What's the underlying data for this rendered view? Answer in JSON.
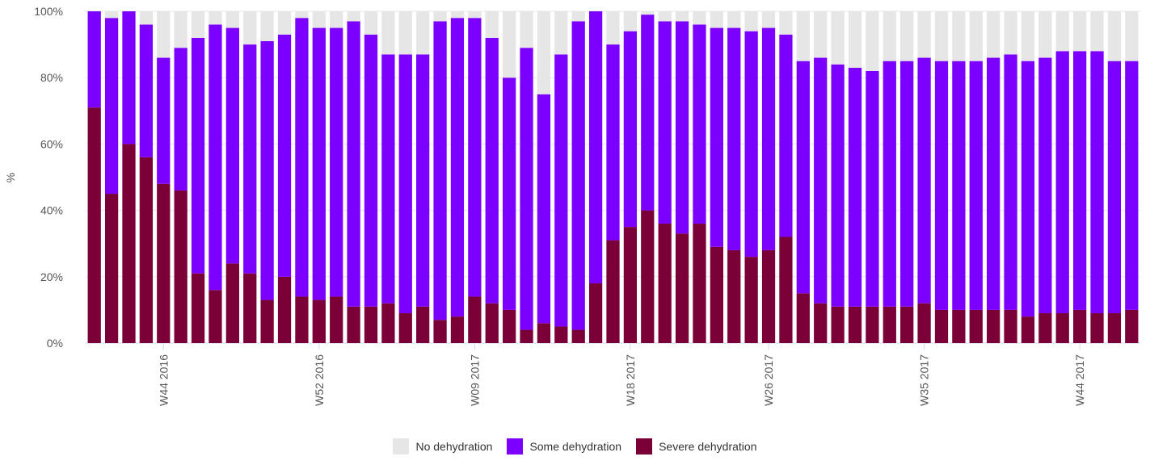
{
  "chart_data": {
    "type": "bar",
    "stacked": true,
    "ylabel": "%",
    "ylim": [
      0,
      100
    ],
    "y_ticks": [
      "0%",
      "20%",
      "40%",
      "60%",
      "80%",
      "100%"
    ],
    "grid": true,
    "legend_position": "bottom",
    "x_tick_labels": [
      "W44 2016",
      "W52 2016",
      "W09 2017",
      "W18 2017",
      "W26 2017",
      "W35 2017",
      "W44 2017"
    ],
    "x_tick_indices": [
      4,
      13,
      22,
      31,
      39,
      48,
      57
    ],
    "series": [
      {
        "name": "Severe dehydration",
        "color": "#7a0037",
        "values": [
          71,
          45,
          60,
          56,
          48,
          46,
          21,
          16,
          24,
          21,
          13,
          20,
          14,
          13,
          14,
          11,
          11,
          12,
          9,
          11,
          7,
          8,
          14,
          12,
          10,
          4,
          6,
          5,
          4,
          18,
          31,
          35,
          40,
          36,
          33,
          36,
          29,
          28,
          26,
          28,
          32,
          15,
          12,
          11,
          11,
          11,
          11,
          11,
          12,
          10,
          10,
          10,
          10,
          10,
          8,
          9,
          9,
          10,
          9,
          9,
          10
        ]
      },
      {
        "name": "Some dehydration",
        "color": "#7b00ff",
        "values": [
          29,
          53,
          40,
          40,
          38,
          43,
          71,
          80,
          71,
          69,
          78,
          73,
          84,
          82,
          81,
          86,
          82,
          75,
          78,
          76,
          90,
          90,
          84,
          80,
          70,
          85,
          69,
          82,
          93,
          82,
          59,
          59,
          59,
          61,
          64,
          60,
          66,
          67,
          68,
          67,
          61,
          70,
          74,
          73,
          72,
          71,
          74,
          74,
          74,
          75,
          75,
          75,
          76,
          77,
          77,
          77,
          79,
          78,
          79,
          76,
          75
        ]
      },
      {
        "name": "No dehydration",
        "color": "#e6e6e6",
        "values": [
          0,
          2,
          0,
          4,
          14,
          11,
          8,
          4,
          5,
          10,
          9,
          7,
          2,
          5,
          5,
          3,
          7,
          13,
          13,
          13,
          3,
          2,
          2,
          8,
          20,
          11,
          25,
          13,
          3,
          0,
          10,
          6,
          1,
          3,
          3,
          4,
          5,
          5,
          6,
          5,
          7,
          15,
          14,
          16,
          17,
          18,
          15,
          15,
          14,
          15,
          15,
          15,
          14,
          13,
          15,
          14,
          12,
          12,
          12,
          15,
          15
        ]
      }
    ]
  }
}
